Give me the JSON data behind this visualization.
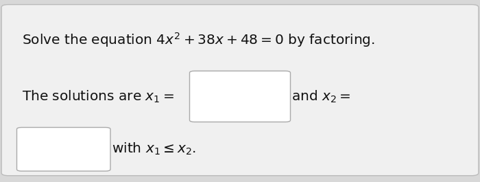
{
  "background_color": "#d8d8d8",
  "card_color": "#f0f0f0",
  "card_edge_color": "#bbbbbb",
  "text_color": "#111111",
  "box_fill_color": "#ffffff",
  "box_edge_color": "#aaaaaa",
  "line1": "Solve the equation $4x^2 + 38x + 48 = 0$ by factoring.",
  "line2_part1": "The solutions are $x_1 =$",
  "line2_part2": "and $x_2 =$",
  "line3_part1": "with $x_1 \\leq x_2$.",
  "fontsize_main": 14.5
}
